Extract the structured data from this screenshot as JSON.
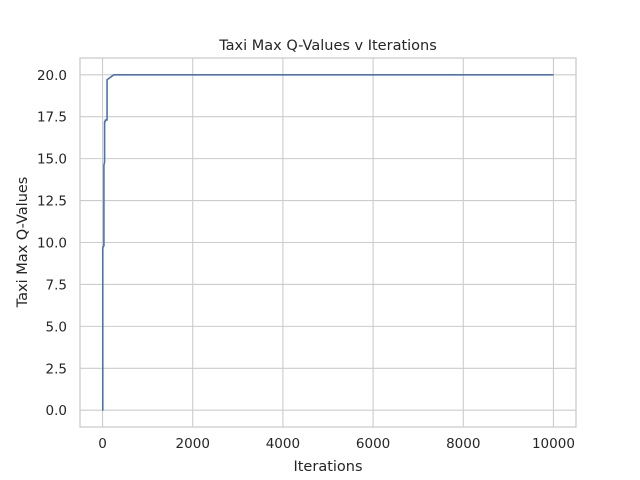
{
  "chart_data": {
    "type": "line",
    "title": "Taxi Max Q-Values v Iterations",
    "xlabel": "Iterations",
    "ylabel": "Taxi Max Q-Values",
    "xlim": [
      -500,
      10500
    ],
    "ylim": [
      -1.0,
      21.0
    ],
    "xticks": [
      0,
      2000,
      4000,
      6000,
      8000,
      10000
    ],
    "xtick_labels": [
      "0",
      "2000",
      "4000",
      "6000",
      "8000",
      "10000"
    ],
    "yticks": [
      0.0,
      2.5,
      5.0,
      7.5,
      10.0,
      12.5,
      15.0,
      17.5,
      20.0
    ],
    "ytick_labels": [
      "0.0",
      "2.5",
      "5.0",
      "7.5",
      "10.0",
      "12.5",
      "15.0",
      "17.5",
      "20.0"
    ],
    "grid": true,
    "legend": "none",
    "series": [
      {
        "color": "#4c72b0",
        "x": [
          0,
          5,
          5,
          30,
          30,
          45,
          45,
          60,
          60,
          100,
          100,
          150,
          200,
          250,
          300,
          10000
        ],
        "y": [
          0.0,
          0.0,
          9.7,
          9.8,
          14.6,
          14.8,
          17.2,
          17.2,
          17.3,
          17.3,
          19.7,
          19.8,
          19.9,
          20.0,
          20.0,
          20.0
        ]
      }
    ]
  }
}
